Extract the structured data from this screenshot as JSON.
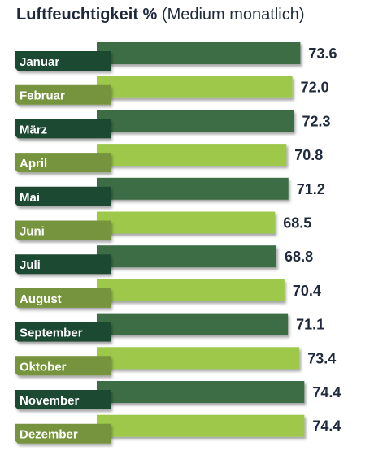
{
  "title": {
    "main": "Luftfeuchtigkeit %",
    "sub": "(Medium monatlich)"
  },
  "chart_data": {
    "type": "bar",
    "orientation": "horizontal",
    "title": "Luftfeuchtigkeit % (Medium monatlich)",
    "categories": [
      "Januar",
      "Februar",
      "März",
      "April",
      "Mai",
      "Juni",
      "Juli",
      "August",
      "September",
      "Oktober",
      "November",
      "Dezember"
    ],
    "values": [
      73.6,
      72.0,
      72.3,
      70.8,
      71.2,
      68.5,
      68.8,
      70.4,
      71.1,
      73.4,
      74.4,
      74.4
    ],
    "value_labels": [
      "73.6",
      "72.0",
      "72.3",
      "70.8",
      "71.2",
      "68.5",
      "68.8",
      "70.4",
      "71.1",
      "73.4",
      "74.4",
      "74.4"
    ],
    "xlim": [
      50,
      75
    ],
    "grid": false,
    "legend": "none",
    "colors": {
      "dark_bar": "#3d6d45",
      "light_bar": "#9dc84a",
      "dark_tag": "#1f4a33",
      "light_tag": "#76943c",
      "value_text": "#1f2a3c"
    }
  }
}
